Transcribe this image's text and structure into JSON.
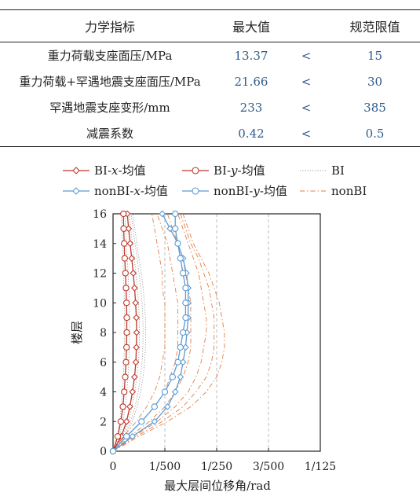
{
  "table": {
    "headers": {
      "name": "力学指标",
      "max": "最大值",
      "limit": "规范限值"
    },
    "rows": [
      {
        "name": "重力荷载支座面压/MPa",
        "max": "13.37",
        "cmp": "<",
        "limit": "15"
      },
      {
        "name": "重力荷载+罕遇地震支座面压/MPa",
        "max": "21.66",
        "cmp": "<",
        "limit": "30"
      },
      {
        "name": "罕遇地震支座变形/mm",
        "max": "233",
        "cmp": "<",
        "limit": "385"
      },
      {
        "name": "减震系数",
        "max": "0.42",
        "cmp": "<",
        "limit": "0.5"
      }
    ]
  },
  "chart_data": {
    "type": "line",
    "xlabel": "最大层间位移角/rad",
    "ylabel": "楼层",
    "xticks": [
      {
        "value": 0,
        "label": "0"
      },
      {
        "value": 0.002,
        "label": "1/500"
      },
      {
        "value": 0.004,
        "label": "1/250"
      },
      {
        "value": 0.006,
        "label": "3/500"
      },
      {
        "value": 0.008,
        "label": "1/125"
      }
    ],
    "yticks": [
      0,
      2,
      4,
      6,
      8,
      10,
      12,
      14,
      16
    ],
    "xlim": [
      0,
      0.008
    ],
    "ylim": [
      0,
      16
    ],
    "grid_x": true,
    "legend_position": "top",
    "series": [
      {
        "name": "BI-x-均值",
        "marker": "diamond",
        "color": "#c0392b",
        "style": "solid",
        "x": [
          0,
          0.00032,
          0.00052,
          0.00065,
          0.00075,
          0.00083,
          0.00088,
          0.0009,
          0.00091,
          0.0009,
          0.00087,
          0.00083,
          0.00078,
          0.00072,
          0.00066,
          0.0006,
          0.00055
        ],
        "y": [
          0,
          1,
          2,
          3,
          4,
          5,
          6,
          7,
          8,
          9,
          10,
          11,
          12,
          13,
          14,
          15,
          16
        ]
      },
      {
        "name": "BI-y-均值",
        "marker": "circle",
        "color": "#c0392b",
        "style": "solid",
        "x": [
          0,
          0.00018,
          0.0003,
          0.00038,
          0.00043,
          0.00047,
          0.0005,
          0.00052,
          0.00053,
          0.00053,
          0.00052,
          0.0005,
          0.00048,
          0.00045,
          0.00043,
          0.00041,
          0.0004
        ],
        "y": [
          0,
          1,
          2,
          3,
          4,
          5,
          6,
          7,
          8,
          9,
          10,
          11,
          12,
          13,
          14,
          15,
          16
        ]
      },
      {
        "name": "BI",
        "color": "#999999",
        "style": "dotted",
        "lines": [
          [
            0,
            0.00016,
            0.00026,
            0.00032,
            0.00036,
            0.0004,
            0.00042,
            0.00044,
            0.00045,
            0.00045,
            0.00044,
            0.00042,
            0.0004,
            0.00038,
            0.00036,
            0.00034,
            0.00032
          ],
          [
            0,
            0.00024,
            0.00038,
            0.00047,
            0.00053,
            0.00058,
            0.00061,
            0.00063,
            0.00064,
            0.00064,
            0.00063,
            0.00061,
            0.00058,
            0.00055,
            0.00051,
            0.00048,
            0.00045
          ],
          [
            0,
            0.00036,
            0.00058,
            0.00073,
            0.00084,
            0.00092,
            0.00098,
            0.00101,
            0.00102,
            0.00101,
            0.00098,
            0.00094,
            0.00088,
            0.00082,
            0.00075,
            0.00068,
            0.00062
          ],
          [
            0,
            0.00042,
            0.00068,
            0.00085,
            0.00097,
            0.00106,
            0.00112,
            0.00115,
            0.00116,
            0.00115,
            0.00112,
            0.00107,
            0.001,
            0.00093,
            0.00085,
            0.00077,
            0.0007
          ],
          [
            0,
            0.00046,
            0.00074,
            0.00093,
            0.00106,
            0.00116,
            0.00122,
            0.00125,
            0.00126,
            0.00125,
            0.00121,
            0.00116,
            0.00109,
            0.001,
            0.00092,
            0.00084,
            0.00076
          ]
        ],
        "y": [
          0,
          1,
          2,
          3,
          4,
          5,
          6,
          7,
          8,
          9,
          10,
          11,
          12,
          13,
          14,
          15,
          16
        ]
      },
      {
        "name": "nonBI-x-均值",
        "marker": "diamond",
        "color": "#5b9bd5",
        "style": "solid",
        "x": [
          0,
          0.00075,
          0.0016,
          0.0021,
          0.0024,
          0.0026,
          0.0027,
          0.0028,
          0.00285,
          0.0029,
          0.0029,
          0.0029,
          0.00283,
          0.0027,
          0.0025,
          0.0022,
          0.0019
        ],
        "y": [
          0,
          1,
          2,
          3,
          4,
          5,
          6,
          7,
          8,
          9,
          10,
          11,
          12,
          13,
          14,
          15,
          16
        ]
      },
      {
        "name": "nonBI-y-均值",
        "marker": "circle",
        "color": "#5b9bd5",
        "style": "solid",
        "x": [
          0,
          0.00052,
          0.0011,
          0.0016,
          0.002,
          0.0023,
          0.0025,
          0.0026,
          0.0027,
          0.0028,
          0.0028,
          0.0028,
          0.0027,
          0.0026,
          0.0025,
          0.0024,
          0.0024
        ],
        "y": [
          0,
          1,
          2,
          3,
          4,
          5,
          6,
          7,
          8,
          9,
          10,
          11,
          12,
          13,
          14,
          15,
          16
        ]
      },
      {
        "name": "nonBI",
        "color": "#e67e45",
        "style": "dashdot",
        "lines": [
          [
            0,
            0.0004,
            0.0009,
            0.0013,
            0.0016,
            0.0018,
            0.0019,
            0.002,
            0.002,
            0.002,
            0.002,
            0.0019,
            0.0019,
            0.0018,
            0.0017,
            0.0016,
            0.0015
          ],
          [
            0,
            0.0005,
            0.0011,
            0.0016,
            0.002,
            0.0022,
            0.0024,
            0.0025,
            0.0025,
            0.0025,
            0.0025,
            0.0024,
            0.0023,
            0.0022,
            0.0021,
            0.0019,
            0.0017
          ],
          [
            0,
            0.00065,
            0.0014,
            0.002,
            0.0024,
            0.0027,
            0.0029,
            0.003,
            0.003,
            0.003,
            0.003,
            0.0029,
            0.0028,
            0.0027,
            0.0025,
            0.0023,
            0.0021
          ],
          [
            0,
            0.0008,
            0.0017,
            0.0024,
            0.0029,
            0.0032,
            0.0034,
            0.0035,
            0.0036,
            0.0036,
            0.0035,
            0.0034,
            0.0033,
            0.0031,
            0.0029,
            0.0027,
            0.0025
          ],
          [
            0,
            0.0009,
            0.0019,
            0.0027,
            0.0032,
            0.0036,
            0.0038,
            0.0039,
            0.0039,
            0.0039,
            0.0038,
            0.0037,
            0.0035,
            0.0033,
            0.003,
            0.0028,
            0.0026
          ],
          [
            0,
            0.001,
            0.0021,
            0.003,
            0.0036,
            0.004,
            0.0042,
            0.0043,
            0.0043,
            0.0042,
            0.0041,
            0.0039,
            0.0037,
            0.0034,
            0.0031,
            0.0029,
            0.0027
          ]
        ],
        "y": [
          0,
          1,
          2,
          3,
          4,
          5,
          6,
          7,
          8,
          9,
          10,
          11,
          12,
          13,
          14,
          15,
          16
        ]
      }
    ]
  }
}
